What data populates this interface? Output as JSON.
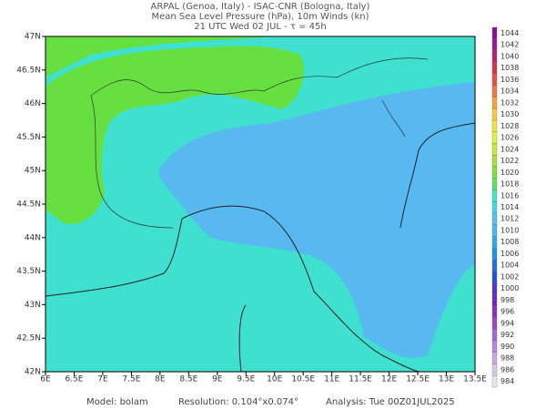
{
  "header": {
    "lines": [
      "ARPAL (Genoa, Italy)  -  ISAC-CNR (Bologna, Italy)",
      "Mean Sea Level Pressure (hPa), 10m Winds (kn)",
      "21 UTC Wed 02 JUL  -  τ = 45h"
    ]
  },
  "map": {
    "lonlim": [
      6,
      13.5
    ],
    "latlim": [
      42,
      47
    ],
    "lon_ticks": [
      {
        "value": 6,
        "label": "6E"
      },
      {
        "value": 6.5,
        "label": "6.5E"
      },
      {
        "value": 7,
        "label": "7E"
      },
      {
        "value": 7.5,
        "label": "7.5E"
      },
      {
        "value": 8,
        "label": "8E"
      },
      {
        "value": 8.5,
        "label": "8.5E"
      },
      {
        "value": 9,
        "label": "9E"
      },
      {
        "value": 9.5,
        "label": "9.5E"
      },
      {
        "value": 10,
        "label": "10E"
      },
      {
        "value": 10.5,
        "label": "10.5E"
      },
      {
        "value": 11,
        "label": "11E"
      },
      {
        "value": 11.5,
        "label": "11.5E"
      },
      {
        "value": 12,
        "label": "12E"
      },
      {
        "value": 12.5,
        "label": "12.5E"
      },
      {
        "value": 13,
        "label": "13E"
      },
      {
        "value": 13.5,
        "label": "13.5E"
      }
    ],
    "lat_ticks": [
      {
        "value": 42,
        "label": "42N"
      },
      {
        "value": 42.5,
        "label": "42.5N"
      },
      {
        "value": 43,
        "label": "43N"
      },
      {
        "value": 43.5,
        "label": "43.5N"
      },
      {
        "value": 44,
        "label": "44N"
      },
      {
        "value": 44.5,
        "label": "44.5N"
      },
      {
        "value": 45,
        "label": "45N"
      },
      {
        "value": 45.5,
        "label": "45.5N"
      },
      {
        "value": 46,
        "label": "46N"
      },
      {
        "value": 46.5,
        "label": "46.5N"
      },
      {
        "value": 47,
        "label": "47N"
      }
    ]
  },
  "colorbar": {
    "levels": [
      984,
      986,
      988,
      990,
      992,
      994,
      996,
      998,
      1000,
      1002,
      1004,
      1006,
      1008,
      1010,
      1012,
      1014,
      1016,
      1018,
      1020,
      1022,
      1024,
      1026,
      1028,
      1030,
      1032,
      1034,
      1036,
      1038,
      1040,
      1042,
      1044
    ],
    "colors": [
      "#e8e8e8",
      "#d8c8e8",
      "#c8a8e0",
      "#b888d8",
      "#a868d0",
      "#9848c8",
      "#8830c0",
      "#6a28c8",
      "#4838d0",
      "#2850d8",
      "#2070e0",
      "#2090e8",
      "#30a8f0",
      "#48b8f0",
      "#58c0f0",
      "#40d8e0",
      "#40e8c0",
      "#60e060",
      "#80e040",
      "#a8e040",
      "#c8e840",
      "#e0f040",
      "#f0e040",
      "#f8c840",
      "#f8a040",
      "#f07840",
      "#e85040",
      "#d83050",
      "#c02070",
      "#a01890",
      "#8010a0"
    ]
  },
  "footer": {
    "model": "Model: bolam",
    "resolution": "Resolution: 0.104°x0.074°",
    "analysis": "Analysis: Tue 00Z01JUL2025"
  }
}
